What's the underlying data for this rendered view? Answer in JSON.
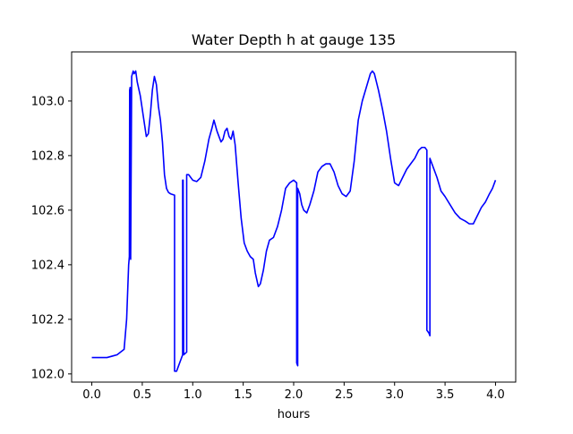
{
  "chart_data": {
    "type": "line",
    "title": "Water Depth h at gauge 135",
    "xlabel": "hours",
    "ylabel": "",
    "xlim": [
      -0.2,
      4.2
    ],
    "ylim": [
      101.97,
      103.18
    ],
    "xticks": [
      0.0,
      0.5,
      1.0,
      1.5,
      2.0,
      2.5,
      3.0,
      3.5,
      4.0
    ],
    "xtick_labels": [
      "0.0",
      "0.5",
      "1.0",
      "1.5",
      "2.0",
      "2.5",
      "3.0",
      "3.5",
      "4.0"
    ],
    "yticks": [
      102.0,
      102.2,
      102.4,
      102.6,
      102.8,
      103.0
    ],
    "ytick_labels": [
      "102.0",
      "102.2",
      "102.4",
      "102.6",
      "102.8",
      "103.0"
    ],
    "grid": false,
    "legend": "none",
    "series": [
      {
        "color": "#0000ff",
        "points": [
          [
            0.0,
            102.06
          ],
          [
            0.15,
            102.06
          ],
          [
            0.25,
            102.07
          ],
          [
            0.32,
            102.09
          ],
          [
            0.345,
            102.2
          ],
          [
            0.365,
            102.4
          ],
          [
            0.372,
            102.43
          ],
          [
            0.375,
            103.04
          ],
          [
            0.38,
            103.05
          ],
          [
            0.385,
            102.42
          ],
          [
            0.395,
            103.09
          ],
          [
            0.41,
            103.11
          ],
          [
            0.42,
            103.1
          ],
          [
            0.435,
            103.11
          ],
          [
            0.45,
            103.07
          ],
          [
            0.48,
            103.02
          ],
          [
            0.5,
            102.97
          ],
          [
            0.52,
            102.92
          ],
          [
            0.54,
            102.87
          ],
          [
            0.56,
            102.88
          ],
          [
            0.58,
            102.95
          ],
          [
            0.6,
            103.04
          ],
          [
            0.62,
            103.09
          ],
          [
            0.64,
            103.06
          ],
          [
            0.66,
            102.98
          ],
          [
            0.68,
            102.93
          ],
          [
            0.7,
            102.85
          ],
          [
            0.72,
            102.73
          ],
          [
            0.74,
            102.68
          ],
          [
            0.76,
            102.665
          ],
          [
            0.78,
            102.66
          ],
          [
            0.82,
            102.655
          ],
          [
            0.82,
            102.01
          ],
          [
            0.84,
            102.01
          ],
          [
            0.87,
            102.04
          ],
          [
            0.9,
            102.07
          ],
          [
            0.9,
            102.71
          ],
          [
            0.905,
            102.71
          ],
          [
            0.91,
            102.07
          ],
          [
            0.94,
            102.08
          ],
          [
            0.94,
            102.73
          ],
          [
            0.96,
            102.73
          ],
          [
            1.0,
            102.71
          ],
          [
            1.04,
            102.705
          ],
          [
            1.08,
            102.72
          ],
          [
            1.12,
            102.78
          ],
          [
            1.16,
            102.86
          ],
          [
            1.19,
            102.9
          ],
          [
            1.21,
            102.93
          ],
          [
            1.24,
            102.89
          ],
          [
            1.26,
            102.87
          ],
          [
            1.28,
            102.85
          ],
          [
            1.3,
            102.86
          ],
          [
            1.32,
            102.89
          ],
          [
            1.34,
            102.9
          ],
          [
            1.36,
            102.87
          ],
          [
            1.38,
            102.86
          ],
          [
            1.4,
            102.89
          ],
          [
            1.42,
            102.84
          ],
          [
            1.45,
            102.7
          ],
          [
            1.48,
            102.57
          ],
          [
            1.51,
            102.48
          ],
          [
            1.54,
            102.45
          ],
          [
            1.57,
            102.43
          ],
          [
            1.6,
            102.42
          ],
          [
            1.62,
            102.37
          ],
          [
            1.65,
            102.32
          ],
          [
            1.67,
            102.33
          ],
          [
            1.7,
            102.38
          ],
          [
            1.73,
            102.45
          ],
          [
            1.76,
            102.49
          ],
          [
            1.8,
            102.5
          ],
          [
            1.84,
            102.54
          ],
          [
            1.88,
            102.6
          ],
          [
            1.92,
            102.68
          ],
          [
            1.96,
            102.7
          ],
          [
            2.0,
            102.71
          ],
          [
            2.03,
            102.7
          ],
          [
            2.03,
            102.04
          ],
          [
            2.04,
            102.03
          ],
          [
            2.04,
            102.68
          ],
          [
            2.06,
            102.66
          ],
          [
            2.08,
            102.62
          ],
          [
            2.1,
            102.6
          ],
          [
            2.13,
            102.59
          ],
          [
            2.16,
            102.62
          ],
          [
            2.2,
            102.67
          ],
          [
            2.24,
            102.74
          ],
          [
            2.28,
            102.76
          ],
          [
            2.32,
            102.77
          ],
          [
            2.36,
            102.77
          ],
          [
            2.4,
            102.74
          ],
          [
            2.44,
            102.69
          ],
          [
            2.48,
            102.66
          ],
          [
            2.52,
            102.65
          ],
          [
            2.56,
            102.67
          ],
          [
            2.6,
            102.78
          ],
          [
            2.64,
            102.93
          ],
          [
            2.68,
            103.0
          ],
          [
            2.72,
            103.05
          ],
          [
            2.76,
            103.1
          ],
          [
            2.78,
            103.11
          ],
          [
            2.8,
            103.1
          ],
          [
            2.84,
            103.04
          ],
          [
            2.88,
            102.97
          ],
          [
            2.92,
            102.89
          ],
          [
            2.96,
            102.79
          ],
          [
            3.0,
            102.7
          ],
          [
            3.04,
            102.69
          ],
          [
            3.08,
            102.72
          ],
          [
            3.12,
            102.75
          ],
          [
            3.16,
            102.77
          ],
          [
            3.2,
            102.79
          ],
          [
            3.24,
            102.82
          ],
          [
            3.27,
            102.83
          ],
          [
            3.3,
            102.83
          ],
          [
            3.32,
            102.82
          ],
          [
            3.32,
            102.16
          ],
          [
            3.34,
            102.15
          ],
          [
            3.35,
            102.14
          ],
          [
            3.35,
            102.79
          ],
          [
            3.38,
            102.76
          ],
          [
            3.42,
            102.72
          ],
          [
            3.46,
            102.67
          ],
          [
            3.5,
            102.65
          ],
          [
            3.55,
            102.62
          ],
          [
            3.6,
            102.59
          ],
          [
            3.65,
            102.57
          ],
          [
            3.7,
            102.56
          ],
          [
            3.74,
            102.55
          ],
          [
            3.78,
            102.55
          ],
          [
            3.82,
            102.58
          ],
          [
            3.86,
            102.61
          ],
          [
            3.9,
            102.63
          ],
          [
            3.94,
            102.66
          ],
          [
            3.97,
            102.68
          ],
          [
            4.0,
            102.71
          ]
        ]
      }
    ]
  }
}
